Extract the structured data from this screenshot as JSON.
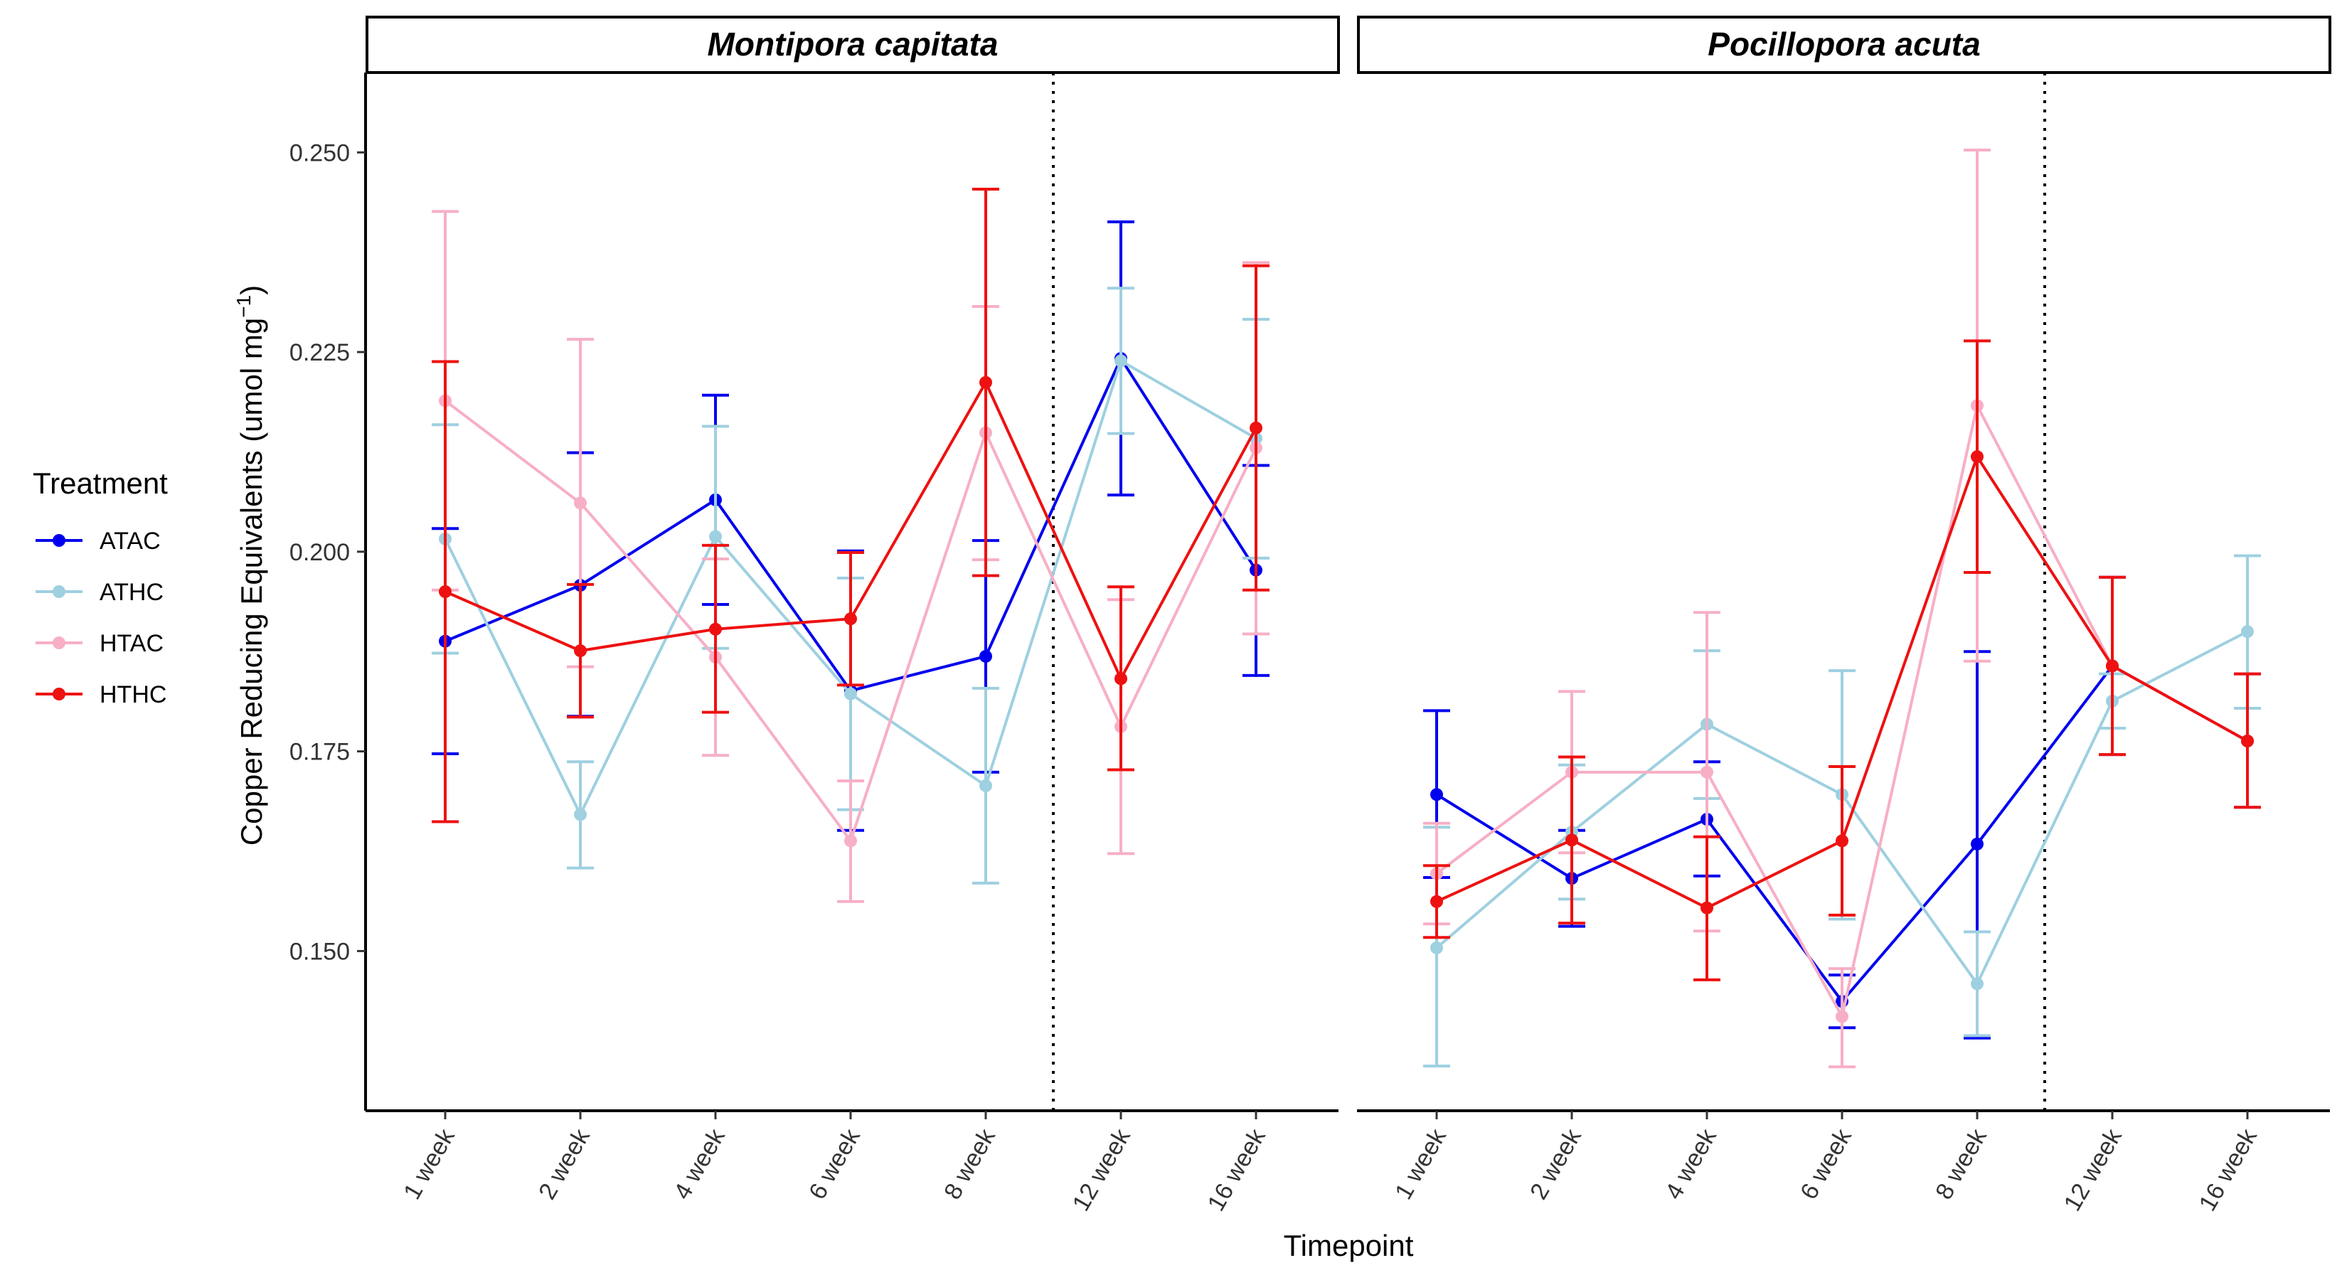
{
  "chart_data": {
    "type": "line",
    "xlabel": "Timepoint",
    "ylabel": "Copper Reducing Equivalents (umol mg",
    "ylabel_sup": "−1",
    "ylabel_close": ")",
    "ylim": [
      0.13,
      0.26
    ],
    "yticks": [
      0.15,
      0.175,
      0.2,
      0.225,
      0.25
    ],
    "ytick_labels": [
      "0.150",
      "0.175",
      "0.200",
      "0.225",
      "0.250"
    ],
    "categories": [
      "1 week",
      "2 week",
      "4 week",
      "6 week",
      "8 week",
      "12 week",
      "16 week"
    ],
    "grid": false,
    "legend": {
      "title": "Treatment",
      "position": "left",
      "entries": [
        {
          "name": "ATAC",
          "color": "#0000EE"
        },
        {
          "name": "ATHC",
          "color": "#9ED0E0"
        },
        {
          "name": "HTAC",
          "color": "#F7AFC5"
        },
        {
          "name": "HTHC",
          "color": "#EE1111"
        }
      ]
    },
    "vline_between": [
      "8 week",
      "12 week"
    ],
    "panels": [
      {
        "title": "Montipora capitata",
        "series": [
          {
            "name": "ATAC",
            "color": "#0000EE",
            "y": [
              0.1888,
              0.1958,
              0.2065,
              0.1826,
              0.1869,
              0.2242,
              0.1977
            ],
            "lo": [
              0.1747,
              0.1794,
              0.1934,
              0.1651,
              0.1724,
              0.2071,
              0.1845
            ],
            "hi": [
              0.2029,
              0.2124,
              0.2196,
              0.2001,
              0.2014,
              0.2413,
              0.2108
            ]
          },
          {
            "name": "ATHC",
            "color": "#9ED0E0",
            "y": [
              0.2016,
              0.1671,
              0.2019,
              0.1822,
              0.1707,
              0.2239,
              0.2142
            ],
            "lo": [
              0.1873,
              0.1604,
              0.1879,
              0.1677,
              0.1585,
              0.2148,
              0.1992
            ],
            "hi": [
              0.2159,
              0.1737,
              0.2157,
              0.1967,
              0.1829,
              0.233,
              0.2291
            ]
          },
          {
            "name": "HTAC",
            "color": "#F7AFC5",
            "y": [
              0.2189,
              0.2061,
              0.1868,
              0.1638,
              0.2149,
              0.1781,
              0.213
            ],
            "lo": [
              0.1952,
              0.1856,
              0.1745,
              0.1562,
              0.199,
              0.1622,
              0.1897
            ],
            "hi": [
              0.2426,
              0.2266,
              0.1991,
              0.1713,
              0.2307,
              0.194,
              0.2362
            ]
          },
          {
            "name": "HTHC",
            "color": "#EE1111",
            "y": [
              0.195,
              0.1876,
              0.1903,
              0.1916,
              0.2212,
              0.1841,
              0.2155
            ],
            "lo": [
              0.1662,
              0.1793,
              0.1799,
              0.1833,
              0.197,
              0.1727,
              0.1952
            ],
            "hi": [
              0.2238,
              0.1959,
              0.2008,
              0.1999,
              0.2454,
              0.1956,
              0.2358
            ]
          }
        ]
      },
      {
        "title": "Pocillopora acuta",
        "series": [
          {
            "name": "ATAC",
            "color": "#0000EE",
            "y": [
              0.1696,
              0.1591,
              0.1665,
              0.1437,
              0.1634,
              0.1857,
              0.1763
            ],
            "lo": [
              0.1592,
              0.1531,
              0.1594,
              0.1404,
              0.1391,
              0.1746,
              0.168
            ],
            "hi": [
              0.1801,
              0.1651,
              0.1737,
              0.147,
              0.1875,
              0.1968,
              0.1847
            ]
          },
          {
            "name": "ATHC",
            "color": "#9ED0E0",
            "y": [
              0.1504,
              0.1649,
              0.1784,
              0.1696,
              0.1459,
              0.1813,
              0.19
            ],
            "lo": [
              0.1356,
              0.1565,
              0.1691,
              0.154,
              0.1394,
              0.1779,
              0.1804
            ],
            "hi": [
              0.1655,
              0.1733,
              0.1876,
              0.1851,
              0.1524,
              0.1847,
              0.1995
            ]
          },
          {
            "name": "HTAC",
            "color": "#F7AFC5",
            "y": [
              0.1597,
              0.1724,
              0.1724,
              0.1418,
              0.2183,
              0.1857,
              0.1763
            ],
            "lo": [
              0.1534,
              0.1623,
              0.1525,
              0.1355,
              0.1863,
              0.1746,
              0.168
            ],
            "hi": [
              0.166,
              0.1825,
              0.1924,
              0.1478,
              0.2503,
              0.1968,
              0.1847
            ]
          },
          {
            "name": "HTHC",
            "color": "#EE1111",
            "y": [
              0.1562,
              0.1639,
              0.1554,
              0.1638,
              0.2119,
              0.1857,
              0.1763
            ],
            "lo": [
              0.1517,
              0.1535,
              0.1464,
              0.1545,
              0.1974,
              0.1746,
              0.168
            ],
            "hi": [
              0.1607,
              0.1743,
              0.1643,
              0.1731,
              0.2264,
              0.1968,
              0.1847
            ]
          }
        ]
      }
    ]
  }
}
